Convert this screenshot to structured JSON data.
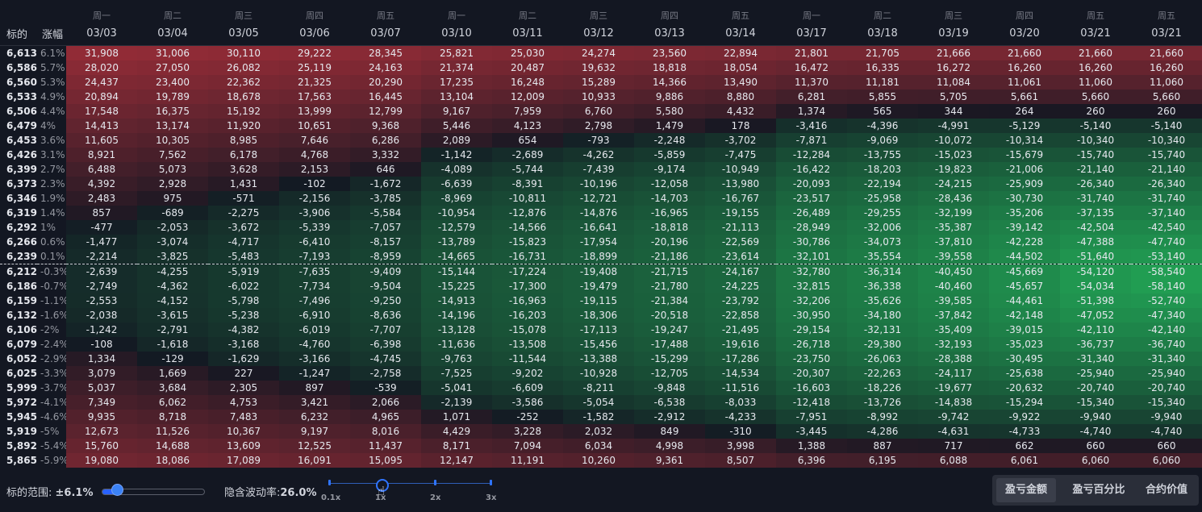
{
  "header": {
    "col_price": "标的",
    "col_change": "涨幅",
    "weekdays": [
      "周一",
      "周二",
      "周三",
      "周四",
      "周五",
      "周一",
      "周二",
      "周三",
      "周四",
      "周五",
      "周一",
      "周二",
      "周三",
      "周四",
      "周五",
      "周五"
    ],
    "dates": [
      "03/03",
      "03/04",
      "03/05",
      "03/06",
      "03/07",
      "03/10",
      "03/11",
      "03/12",
      "03/13",
      "03/14",
      "03/17",
      "03/18",
      "03/19",
      "03/20",
      "03/21",
      "03/21"
    ]
  },
  "rows": [
    {
      "price": "6,613",
      "change": "6.1%",
      "values": [
        "31,908",
        "31,006",
        "30,110",
        "29,222",
        "28,345",
        "25,821",
        "25,030",
        "24,274",
        "23,560",
        "22,894",
        "21,801",
        "21,705",
        "21,666",
        "21,660",
        "21,660",
        "21,660"
      ]
    },
    {
      "price": "6,586",
      "change": "5.7%",
      "values": [
        "28,020",
        "27,050",
        "26,082",
        "25,119",
        "24,163",
        "21,374",
        "20,487",
        "19,632",
        "18,818",
        "18,054",
        "16,472",
        "16,335",
        "16,272",
        "16,260",
        "16,260",
        "16,260"
      ]
    },
    {
      "price": "6,560",
      "change": "5.3%",
      "values": [
        "24,437",
        "23,400",
        "22,362",
        "21,325",
        "20,290",
        "17,235",
        "16,248",
        "15,289",
        "14,366",
        "13,490",
        "11,370",
        "11,181",
        "11,084",
        "11,061",
        "11,060",
        "11,060"
      ]
    },
    {
      "price": "6,533",
      "change": "4.9%",
      "values": [
        "20,894",
        "19,789",
        "18,678",
        "17,563",
        "16,445",
        "13,104",
        "12,009",
        "10,933",
        "9,886",
        "8,880",
        "6,281",
        "5,855",
        "5,705",
        "5,661",
        "5,660",
        "5,660"
      ]
    },
    {
      "price": "6,506",
      "change": "4.4%",
      "values": [
        "17,548",
        "16,375",
        "15,192",
        "13,999",
        "12,799",
        "9,167",
        "7,959",
        "6,760",
        "5,580",
        "4,432",
        "1,374",
        "565",
        "344",
        "264",
        "260",
        "260"
      ]
    },
    {
      "price": "6,479",
      "change": "4%",
      "values": [
        "14,413",
        "13,174",
        "11,920",
        "10,651",
        "9,368",
        "5,446",
        "4,123",
        "2,798",
        "1,479",
        "178",
        "-3,416",
        "-4,396",
        "-4,991",
        "-5,129",
        "-5,140",
        "-5,140"
      ]
    },
    {
      "price": "6,453",
      "change": "3.6%",
      "values": [
        "11,605",
        "10,305",
        "8,985",
        "7,646",
        "6,286",
        "2,089",
        "654",
        "-793",
        "-2,248",
        "-3,702",
        "-7,871",
        "-9,069",
        "-10,072",
        "-10,314",
        "-10,340",
        "-10,340"
      ]
    },
    {
      "price": "6,426",
      "change": "3.1%",
      "values": [
        "8,921",
        "7,562",
        "6,178",
        "4,768",
        "3,332",
        "-1,142",
        "-2,689",
        "-4,262",
        "-5,859",
        "-7,475",
        "-12,284",
        "-13,755",
        "-15,023",
        "-15,679",
        "-15,740",
        "-15,740"
      ]
    },
    {
      "price": "6,399",
      "change": "2.7%",
      "values": [
        "6,488",
        "5,073",
        "3,628",
        "2,153",
        "646",
        "-4,089",
        "-5,744",
        "-7,439",
        "-9,174",
        "-10,949",
        "-16,422",
        "-18,203",
        "-19,823",
        "-21,006",
        "-21,140",
        "-21,140"
      ]
    },
    {
      "price": "6,373",
      "change": "2.3%",
      "values": [
        "4,392",
        "2,928",
        "1,431",
        "-102",
        "-1,672",
        "-6,639",
        "-8,391",
        "-10,196",
        "-12,058",
        "-13,980",
        "-20,093",
        "-22,194",
        "-24,215",
        "-25,909",
        "-26,340",
        "-26,340"
      ]
    },
    {
      "price": "6,346",
      "change": "1.9%",
      "values": [
        "2,483",
        "975",
        "-571",
        "-2,156",
        "-3,785",
        "-8,969",
        "-10,811",
        "-12,721",
        "-14,703",
        "-16,767",
        "-23,517",
        "-25,958",
        "-28,436",
        "-30,730",
        "-31,740",
        "-31,740"
      ]
    },
    {
      "price": "6,319",
      "change": "1.4%",
      "values": [
        "857",
        "-689",
        "-2,275",
        "-3,906",
        "-5,584",
        "-10,954",
        "-12,876",
        "-14,876",
        "-16,965",
        "-19,155",
        "-26,489",
        "-29,255",
        "-32,199",
        "-35,206",
        "-37,135",
        "-37,140"
      ]
    },
    {
      "price": "6,292",
      "change": "1%",
      "values": [
        "-477",
        "-2,053",
        "-3,672",
        "-5,339",
        "-7,057",
        "-12,579",
        "-14,566",
        "-16,641",
        "-18,818",
        "-21,113",
        "-28,949",
        "-32,006",
        "-35,387",
        "-39,142",
        "-42,504",
        "-42,540"
      ]
    },
    {
      "price": "6,266",
      "change": "0.6%",
      "values": [
        "-1,477",
        "-3,074",
        "-4,717",
        "-6,410",
        "-8,157",
        "-13,789",
        "-15,823",
        "-17,954",
        "-20,196",
        "-22,569",
        "-30,786",
        "-34,073",
        "-37,810",
        "-42,228",
        "-47,388",
        "-47,740"
      ]
    },
    {
      "price": "6,239",
      "change": "0.1%",
      "values": [
        "-2,214",
        "-3,825",
        "-5,483",
        "-7,193",
        "-8,959",
        "-14,665",
        "-16,731",
        "-18,899",
        "-21,186",
        "-23,614",
        "-32,101",
        "-35,554",
        "-39,558",
        "-44,502",
        "-51,640",
        "-53,140"
      ]
    },
    {
      "price": "6,212",
      "change": "-0.3%",
      "values": [
        "-2,639",
        "-4,255",
        "-5,919",
        "-7,635",
        "-9,409",
        "-15,144",
        "-17,224",
        "-19,408",
        "-21,715",
        "-24,167",
        "-32,780",
        "-36,314",
        "-40,450",
        "-45,669",
        "-54,120",
        "-58,540"
      ]
    },
    {
      "price": "6,186",
      "change": "-0.7%",
      "values": [
        "-2,749",
        "-4,362",
        "-6,022",
        "-7,734",
        "-9,504",
        "-15,225",
        "-17,300",
        "-19,479",
        "-21,780",
        "-24,225",
        "-32,815",
        "-36,338",
        "-40,460",
        "-45,657",
        "-54,034",
        "-58,140"
      ]
    },
    {
      "price": "6,159",
      "change": "-1.1%",
      "values": [
        "-2,553",
        "-4,152",
        "-5,798",
        "-7,496",
        "-9,250",
        "-14,913",
        "-16,963",
        "-19,115",
        "-21,384",
        "-23,792",
        "-32,206",
        "-35,626",
        "-39,585",
        "-44,461",
        "-51,398",
        "-52,740"
      ]
    },
    {
      "price": "6,132",
      "change": "-1.6%",
      "values": [
        "-2,038",
        "-3,615",
        "-5,238",
        "-6,910",
        "-8,636",
        "-14,196",
        "-16,203",
        "-18,306",
        "-20,518",
        "-22,858",
        "-30,950",
        "-34,180",
        "-37,842",
        "-42,148",
        "-47,052",
        "-47,340"
      ]
    },
    {
      "price": "6,106",
      "change": "-2%",
      "values": [
        "-1,242",
        "-2,791",
        "-4,382",
        "-6,019",
        "-7,707",
        "-13,128",
        "-15,078",
        "-17,113",
        "-19,247",
        "-21,495",
        "-29,154",
        "-32,131",
        "-35,409",
        "-39,015",
        "-42,110",
        "-42,140"
      ]
    },
    {
      "price": "6,079",
      "change": "-2.4%",
      "values": [
        "-108",
        "-1,618",
        "-3,168",
        "-4,760",
        "-6,398",
        "-11,636",
        "-13,508",
        "-15,456",
        "-17,488",
        "-19,616",
        "-26,718",
        "-29,380",
        "-32,193",
        "-35,023",
        "-36,737",
        "-36,740"
      ]
    },
    {
      "price": "6,052",
      "change": "-2.9%",
      "values": [
        "1,334",
        "-129",
        "-1,629",
        "-3,166",
        "-4,745",
        "-9,763",
        "-11,544",
        "-13,388",
        "-15,299",
        "-17,286",
        "-23,750",
        "-26,063",
        "-28,388",
        "-30,495",
        "-31,340",
        "-31,340"
      ]
    },
    {
      "price": "6,025",
      "change": "-3.3%",
      "values": [
        "3,079",
        "1,669",
        "227",
        "-1,247",
        "-2,758",
        "-7,525",
        "-9,202",
        "-10,928",
        "-12,705",
        "-14,534",
        "-20,307",
        "-22,263",
        "-24,117",
        "-25,638",
        "-25,940",
        "-25,940"
      ]
    },
    {
      "price": "5,999",
      "change": "-3.7%",
      "values": [
        "5,037",
        "3,684",
        "2,305",
        "897",
        "-539",
        "-5,041",
        "-6,609",
        "-8,211",
        "-9,848",
        "-11,516",
        "-16,603",
        "-18,226",
        "-19,677",
        "-20,632",
        "-20,740",
        "-20,740"
      ]
    },
    {
      "price": "5,972",
      "change": "-4.1%",
      "values": [
        "7,349",
        "6,062",
        "4,753",
        "3,421",
        "2,066",
        "-2,139",
        "-3,586",
        "-5,054",
        "-6,538",
        "-8,033",
        "-12,418",
        "-13,726",
        "-14,838",
        "-15,294",
        "-15,340",
        "-15,340"
      ]
    },
    {
      "price": "5,945",
      "change": "-4.6%",
      "values": [
        "9,935",
        "8,718",
        "7,483",
        "6,232",
        "4,965",
        "1,071",
        "-252",
        "-1,582",
        "-2,912",
        "-4,233",
        "-7,951",
        "-8,992",
        "-9,742",
        "-9,922",
        "-9,940",
        "-9,940"
      ]
    },
    {
      "price": "5,919",
      "change": "-5%",
      "values": [
        "12,673",
        "11,526",
        "10,367",
        "9,197",
        "8,016",
        "4,429",
        "3,228",
        "2,032",
        "849",
        "-310",
        "-3,445",
        "-4,286",
        "-4,631",
        "-4,733",
        "-4,740",
        "-4,740"
      ]
    },
    {
      "price": "5,892",
      "change": "-5.4%",
      "values": [
        "15,760",
        "14,688",
        "13,609",
        "12,525",
        "11,437",
        "8,171",
        "7,094",
        "6,034",
        "4,998",
        "3,998",
        "1,388",
        "887",
        "717",
        "662",
        "660",
        "660"
      ]
    },
    {
      "price": "5,865",
      "change": "-5.9%",
      "values": [
        "19,080",
        "18,086",
        "17,089",
        "16,091",
        "15,095",
        "12,147",
        "11,191",
        "10,260",
        "9,361",
        "8,507",
        "6,396",
        "6,195",
        "6,088",
        "6,061",
        "6,060",
        "6,060"
      ]
    }
  ],
  "footer": {
    "range_label": "标的范围: ",
    "range_value": "±6.1%",
    "range_slider_fraction": 0.13,
    "iv_label": "隐含波动率:",
    "iv_value": "26.0%",
    "iv_ticks": [
      "0.1x",
      "1x",
      "2x",
      "3x"
    ],
    "iv_selected": "1x",
    "buttons": [
      "盈亏金额",
      "盈亏百分比",
      "合约价值"
    ],
    "active_button": "盈亏金额"
  },
  "colors": {
    "background": "#131722",
    "profit": "#c2333e",
    "loss": "#23b55b",
    "accent": "#2962ff"
  }
}
